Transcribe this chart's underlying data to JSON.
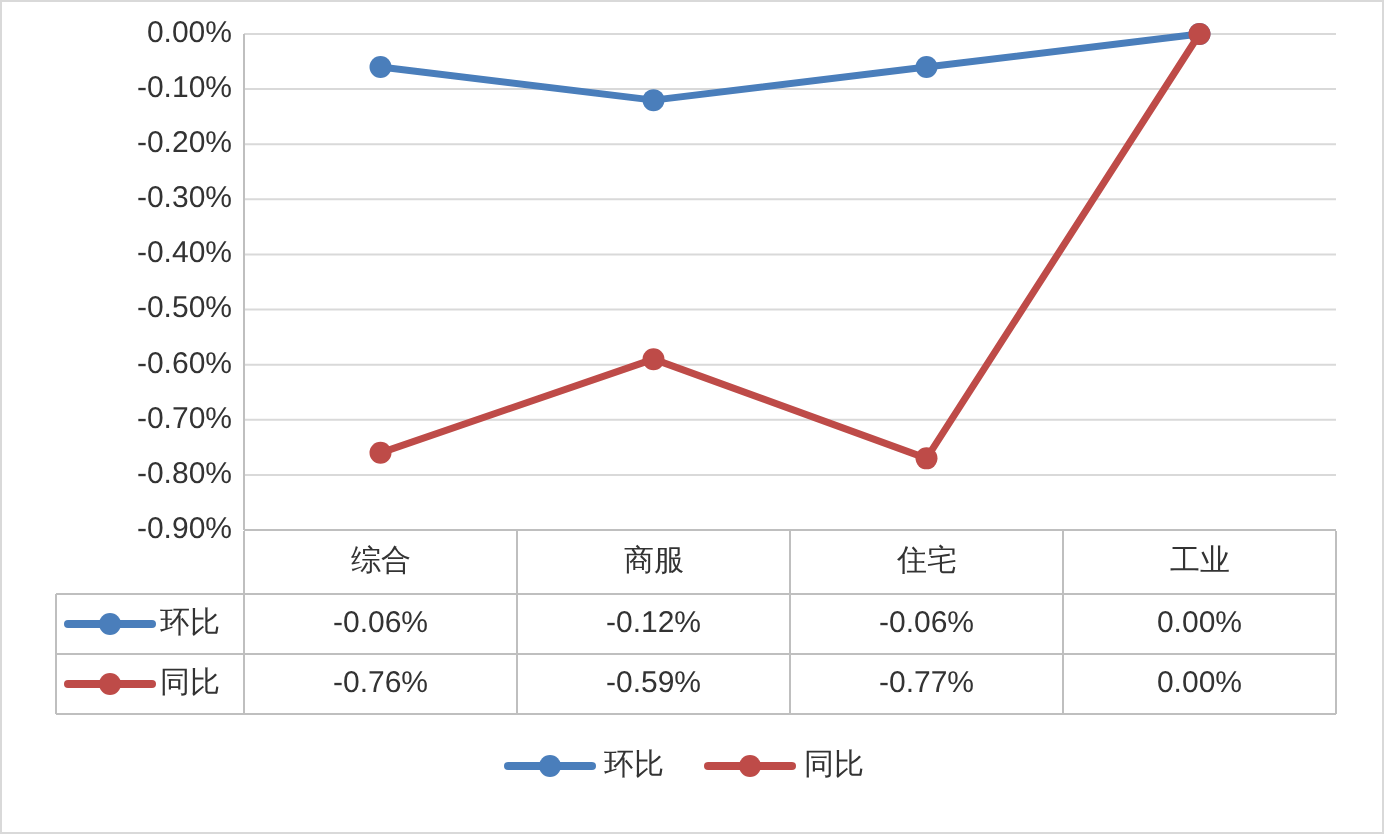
{
  "chart_data": {
    "type": "line",
    "categories": [
      "综合",
      "商服",
      "住宅",
      "工业"
    ],
    "series": [
      {
        "name": "环比",
        "color": "#4a7ebb",
        "values": [
          -0.06,
          -0.12,
          -0.06,
          0.0
        ],
        "value_labels": [
          "-0.06%",
          "-0.12%",
          "-0.06%",
          "0.00%"
        ]
      },
      {
        "name": "同比",
        "color": "#be4b48",
        "values": [
          -0.76,
          -0.59,
          -0.77,
          0.0
        ],
        "value_labels": [
          "-0.76%",
          "-0.59%",
          "-0.77%",
          "0.00%"
        ]
      }
    ],
    "ylim": [
      -0.9,
      0
    ],
    "yticks": [
      {
        "value": 0,
        "label": "0.00%"
      },
      {
        "value": -0.1,
        "label": "-0.10%"
      },
      {
        "value": -0.2,
        "label": "-0.20%"
      },
      {
        "value": -0.3,
        "label": "-0.30%"
      },
      {
        "value": -0.4,
        "label": "-0.40%"
      },
      {
        "value": -0.5,
        "label": "-0.50%"
      },
      {
        "value": -0.6,
        "label": "-0.60%"
      },
      {
        "value": -0.7,
        "label": "-0.70%"
      },
      {
        "value": -0.8,
        "label": "-0.80%"
      },
      {
        "value": -0.9,
        "label": "-0.90%"
      }
    ],
    "grid": "y",
    "legend": "bottom",
    "marker": "circle",
    "line_style": "solid"
  }
}
